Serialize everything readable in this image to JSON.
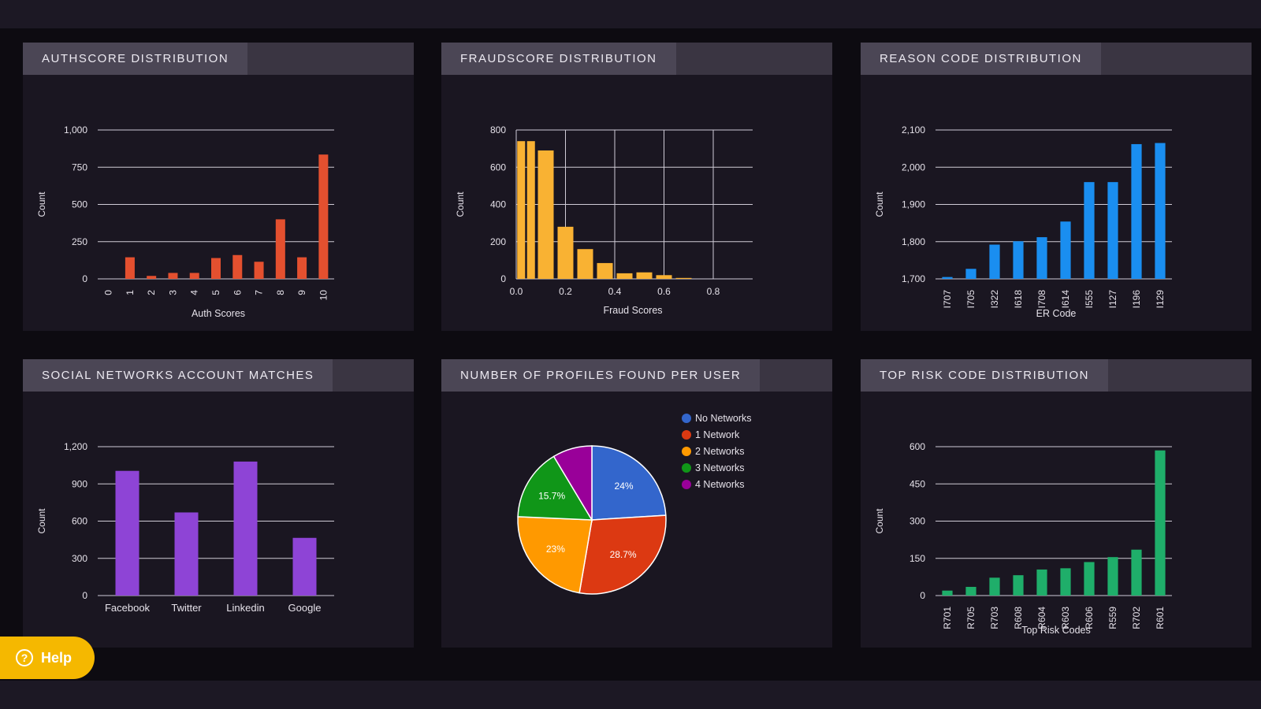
{
  "help": {
    "label": "Help",
    "icon": "question-circle-icon"
  },
  "colors": {
    "authscore": "#e4502f",
    "fraudscore": "#f9b233",
    "reason": "#1a8ef0",
    "social": "#8e44d6",
    "risk": "#1fae6a",
    "pie": [
      "#3366cc",
      "#dc3912",
      "#ff9900",
      "#109618",
      "#990099"
    ]
  },
  "chart_data": [
    {
      "id": "authscore",
      "type": "bar",
      "title": "AUTHSCORE DISTRIBUTION",
      "xlabel": "Auth Scores",
      "ylabel": "Count",
      "categories": [
        "0",
        "1",
        "2",
        "3",
        "4",
        "5",
        "6",
        "7",
        "8",
        "9",
        "10"
      ],
      "values": [
        0,
        145,
        20,
        40,
        40,
        140,
        160,
        115,
        400,
        145,
        835
      ],
      "ylim": [
        0,
        1000
      ],
      "yticks": [
        0,
        250,
        500,
        750,
        1000
      ],
      "ytick_labels": [
        "0",
        "250",
        "500",
        "750",
        "1,000"
      ],
      "rotate_x_labels": true,
      "grid": "horizontal"
    },
    {
      "id": "fraudscore",
      "type": "bar",
      "title": "FRAUDSCORE DISTRIBUTION",
      "xlabel": "Fraud Scores",
      "ylabel": "Count",
      "bins": [
        [
          0.0,
          0.04
        ],
        [
          0.04,
          0.08
        ],
        [
          0.08,
          0.16
        ],
        [
          0.16,
          0.24
        ],
        [
          0.24,
          0.32
        ],
        [
          0.32,
          0.4
        ],
        [
          0.4,
          0.48
        ],
        [
          0.48,
          0.56
        ],
        [
          0.56,
          0.64
        ],
        [
          0.64,
          0.72
        ],
        [
          0.72,
          0.8
        ],
        [
          0.8,
          0.88
        ]
      ],
      "values": [
        740,
        740,
        690,
        280,
        160,
        85,
        30,
        35,
        20,
        5,
        0,
        0
      ],
      "xlim": [
        0,
        0.96
      ],
      "xticks": [
        0.0,
        0.2,
        0.4,
        0.6,
        0.8
      ],
      "xtick_labels": [
        "0.0",
        "0.2",
        "0.4",
        "0.6",
        "0.8"
      ],
      "ylim": [
        0,
        800
      ],
      "yticks": [
        0,
        200,
        400,
        600,
        800
      ],
      "ytick_labels": [
        "0",
        "200",
        "400",
        "600",
        "800"
      ],
      "grid": "both"
    },
    {
      "id": "reason",
      "type": "bar",
      "title": "REASON CODE DISTRIBUTION",
      "xlabel": "ER Code",
      "ylabel": "Count",
      "categories": [
        "I707",
        "I705",
        "I322",
        "I618",
        "I708",
        "I614",
        "I555",
        "I127",
        "I196",
        "I129"
      ],
      "values": [
        1705,
        1727,
        1792,
        1801,
        1812,
        1854,
        1960,
        1960,
        2062,
        2065
      ],
      "ylim": [
        1700,
        2100
      ],
      "yticks": [
        1700,
        1800,
        1900,
        2000,
        2100
      ],
      "ytick_labels": [
        "1,700",
        "1,800",
        "1,900",
        "2,000",
        "2,100"
      ],
      "rotate_x_labels": true,
      "grid": "horizontal"
    },
    {
      "id": "social",
      "type": "bar",
      "title": "SOCIAL NETWORKS ACCOUNT MATCHES",
      "xlabel": "",
      "ylabel": "Count",
      "categories": [
        "Facebook",
        "Twitter",
        "Linkedin",
        "Google"
      ],
      "values": [
        1005,
        670,
        1080,
        465
      ],
      "ylim": [
        0,
        1200
      ],
      "yticks": [
        0,
        300,
        600,
        900,
        1200
      ],
      "ytick_labels": [
        "0",
        "300",
        "600",
        "900",
        "1,200"
      ],
      "rotate_x_labels": false,
      "grid": "horizontal"
    },
    {
      "id": "profiles",
      "type": "pie",
      "title": "NUMBER OF PROFILES FOUND PER USER",
      "labels": [
        "No Networks",
        "1 Network",
        "2 Networks",
        "3 Networks",
        "4 Networks"
      ],
      "values": [
        24,
        28.7,
        23,
        15.7,
        8.6
      ],
      "slice_labels": [
        "24%",
        "28.7%",
        "23%",
        "15.7%",
        ""
      ],
      "legend": "right"
    },
    {
      "id": "risk",
      "type": "bar",
      "title": "TOP RISK CODE DISTRIBUTION",
      "xlabel": "Top Risk Codes",
      "ylabel": "Count",
      "categories": [
        "R701",
        "R705",
        "R703",
        "R608",
        "R604",
        "R603",
        "R606",
        "R559",
        "R702",
        "R601"
      ],
      "values": [
        20,
        35,
        72,
        82,
        105,
        110,
        135,
        155,
        185,
        585
      ],
      "ylim": [
        0,
        600
      ],
      "yticks": [
        0,
        150,
        300,
        450,
        600
      ],
      "ytick_labels": [
        "0",
        "150",
        "300",
        "450",
        "600"
      ],
      "rotate_x_labels": true,
      "grid": "horizontal"
    }
  ]
}
